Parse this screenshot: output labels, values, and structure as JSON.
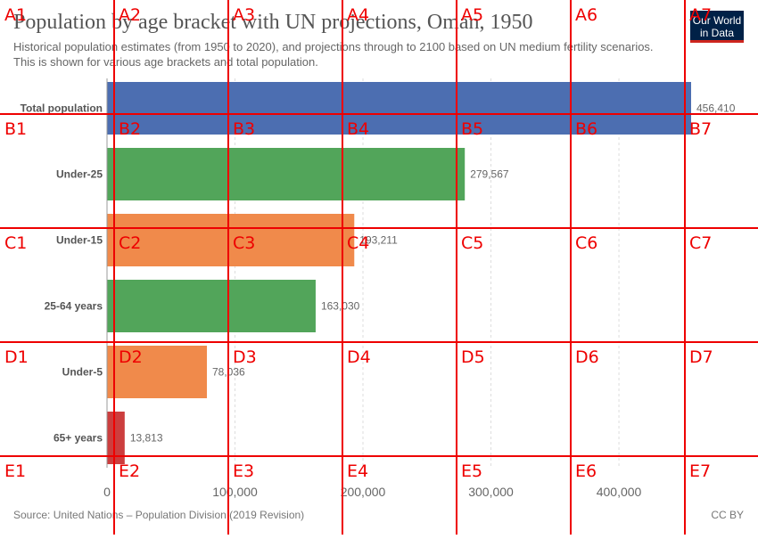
{
  "header": {
    "title": "Population by age bracket with UN projections, Oman, 1950",
    "subtitle": "Historical population estimates (from 1950 to 2020), and projections through to 2100 based on UN medium fertility scenarios. This is shown for various age brackets and total population.",
    "logo_line1": "Our World",
    "logo_line2": "in Data"
  },
  "chart_data": {
    "type": "bar",
    "orientation": "horizontal",
    "categories": [
      "Total population",
      "Under-25",
      "Under-15",
      "25-64 years",
      "Under-5",
      "65+ years"
    ],
    "values": [
      456410,
      279567,
      193211,
      163030,
      78036,
      13813
    ],
    "value_labels": [
      "456,410",
      "279,567",
      "193,211",
      "163,030",
      "78,036",
      "13,813"
    ],
    "colors": [
      "#4c6eb1",
      "#52a55a",
      "#f08a4b",
      "#52a55a",
      "#f08a4b",
      "#cc3e3e"
    ],
    "xlim": [
      0,
      456410
    ],
    "xticks": [
      0,
      100000,
      200000,
      300000,
      400000
    ],
    "xtick_labels": [
      "0",
      "100,000",
      "200,000",
      "300,000",
      "400,000"
    ],
    "grid": true
  },
  "footer": {
    "source": "Source: United Nations – Population Division (2019 Revision)",
    "license": "CC BY"
  },
  "overlay": {
    "labels": [
      "A1",
      "A2",
      "A3",
      "A4",
      "A5",
      "A6",
      "A7",
      "B1",
      "B2",
      "B3",
      "B4",
      "B5",
      "B6",
      "B7",
      "C1",
      "C2",
      "C3",
      "C4",
      "C5",
      "C6",
      "C7",
      "D1",
      "D2",
      "D3",
      "D4",
      "D5",
      "D6",
      "D7",
      "E1",
      "E2",
      "E3",
      "E4",
      "E5",
      "E6",
      "E7"
    ],
    "color": "#ee0000"
  }
}
